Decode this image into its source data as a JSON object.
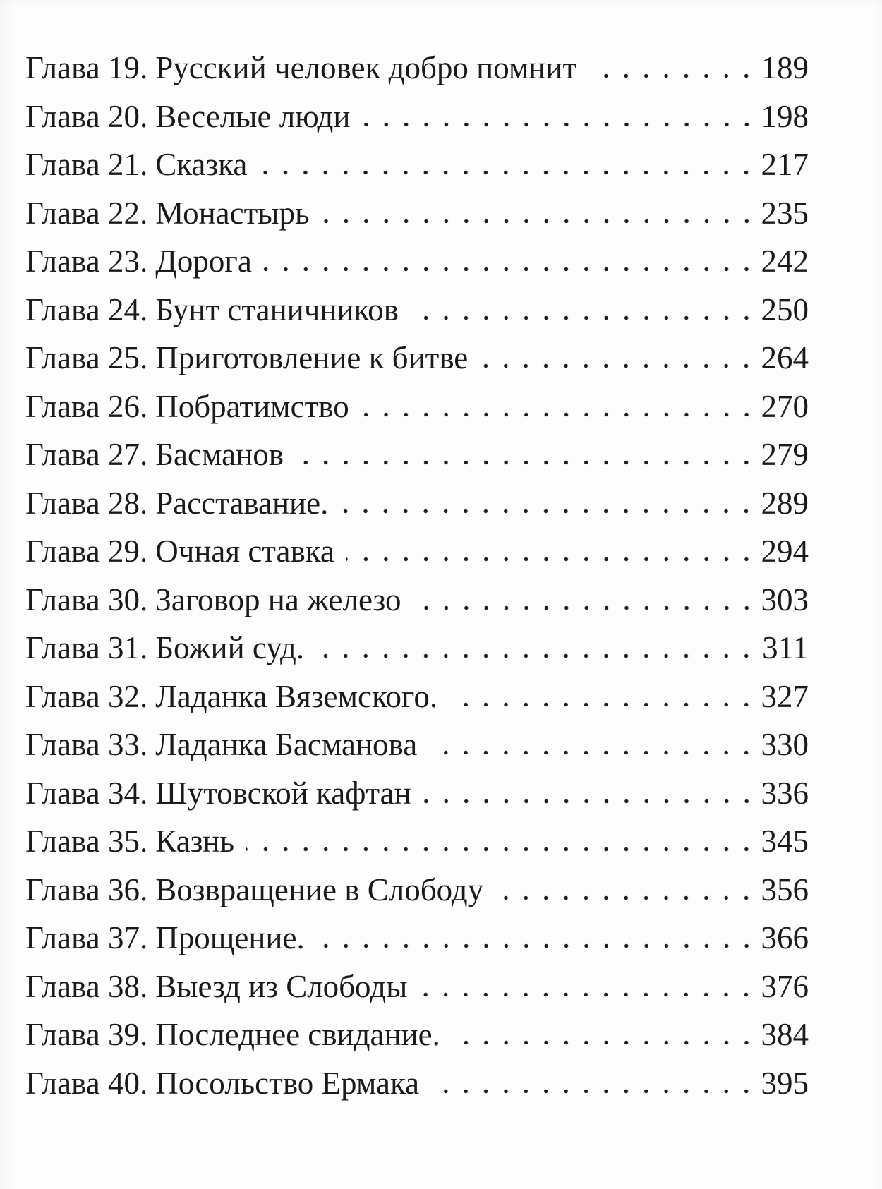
{
  "page": {
    "background": "#fdfdfd",
    "text_color": "#1a1a1a",
    "dot_color": "#1c1c1c"
  },
  "toc": {
    "entries": [
      {
        "chapter": "Глава 19.",
        "title": "Русский человек добро помнит",
        "page": "189"
      },
      {
        "chapter": "Глава 20.",
        "title": "Веселые люди",
        "page": "198"
      },
      {
        "chapter": "Глава 21.",
        "title": "Сказка",
        "page": "217"
      },
      {
        "chapter": "Глава 22.",
        "title": "Монастырь",
        "page": "235"
      },
      {
        "chapter": "Глава 23.",
        "title": "Дорога",
        "page": "242"
      },
      {
        "chapter": "Глава 24.",
        "title": "Бунт станичников",
        "page": "250"
      },
      {
        "chapter": "Глава 25.",
        "title": "Приготовление к битве",
        "page": "264"
      },
      {
        "chapter": "Глава 26.",
        "title": "Побратимство",
        "page": "270"
      },
      {
        "chapter": "Глава 27.",
        "title": "Басманов",
        "page": "279"
      },
      {
        "chapter": "Глава 28.",
        "title": "Расставание.",
        "page": "289"
      },
      {
        "chapter": "Глава 29.",
        "title": "Очная ставка",
        "page": "294"
      },
      {
        "chapter": "Глава 30.",
        "title": "Заговор на железо",
        "page": "303"
      },
      {
        "chapter": "Глава 31.",
        "title": "Божий суд.",
        "page": "311"
      },
      {
        "chapter": "Глава 32.",
        "title": "Ладанка Вяземского.",
        "page": "327"
      },
      {
        "chapter": "Глава 33.",
        "title": "Ладанка Басманова",
        "page": "330"
      },
      {
        "chapter": "Глава 34.",
        "title": "Шутовской кафтан",
        "page": "336"
      },
      {
        "chapter": "Глава 35.",
        "title": "Казнь",
        "page": "345"
      },
      {
        "chapter": "Глава 36.",
        "title": "Возвращение в Слободу",
        "page": "356"
      },
      {
        "chapter": "Глава 37.",
        "title": "Прощение.",
        "page": "366"
      },
      {
        "chapter": "Глава 38.",
        "title": "Выезд из Слободы",
        "page": "376"
      },
      {
        "chapter": "Глава 39.",
        "title": "Последнее свидание.",
        "page": "384"
      },
      {
        "chapter": "Глава 40.",
        "title": "Посольство Ермака",
        "page": "395"
      }
    ]
  }
}
